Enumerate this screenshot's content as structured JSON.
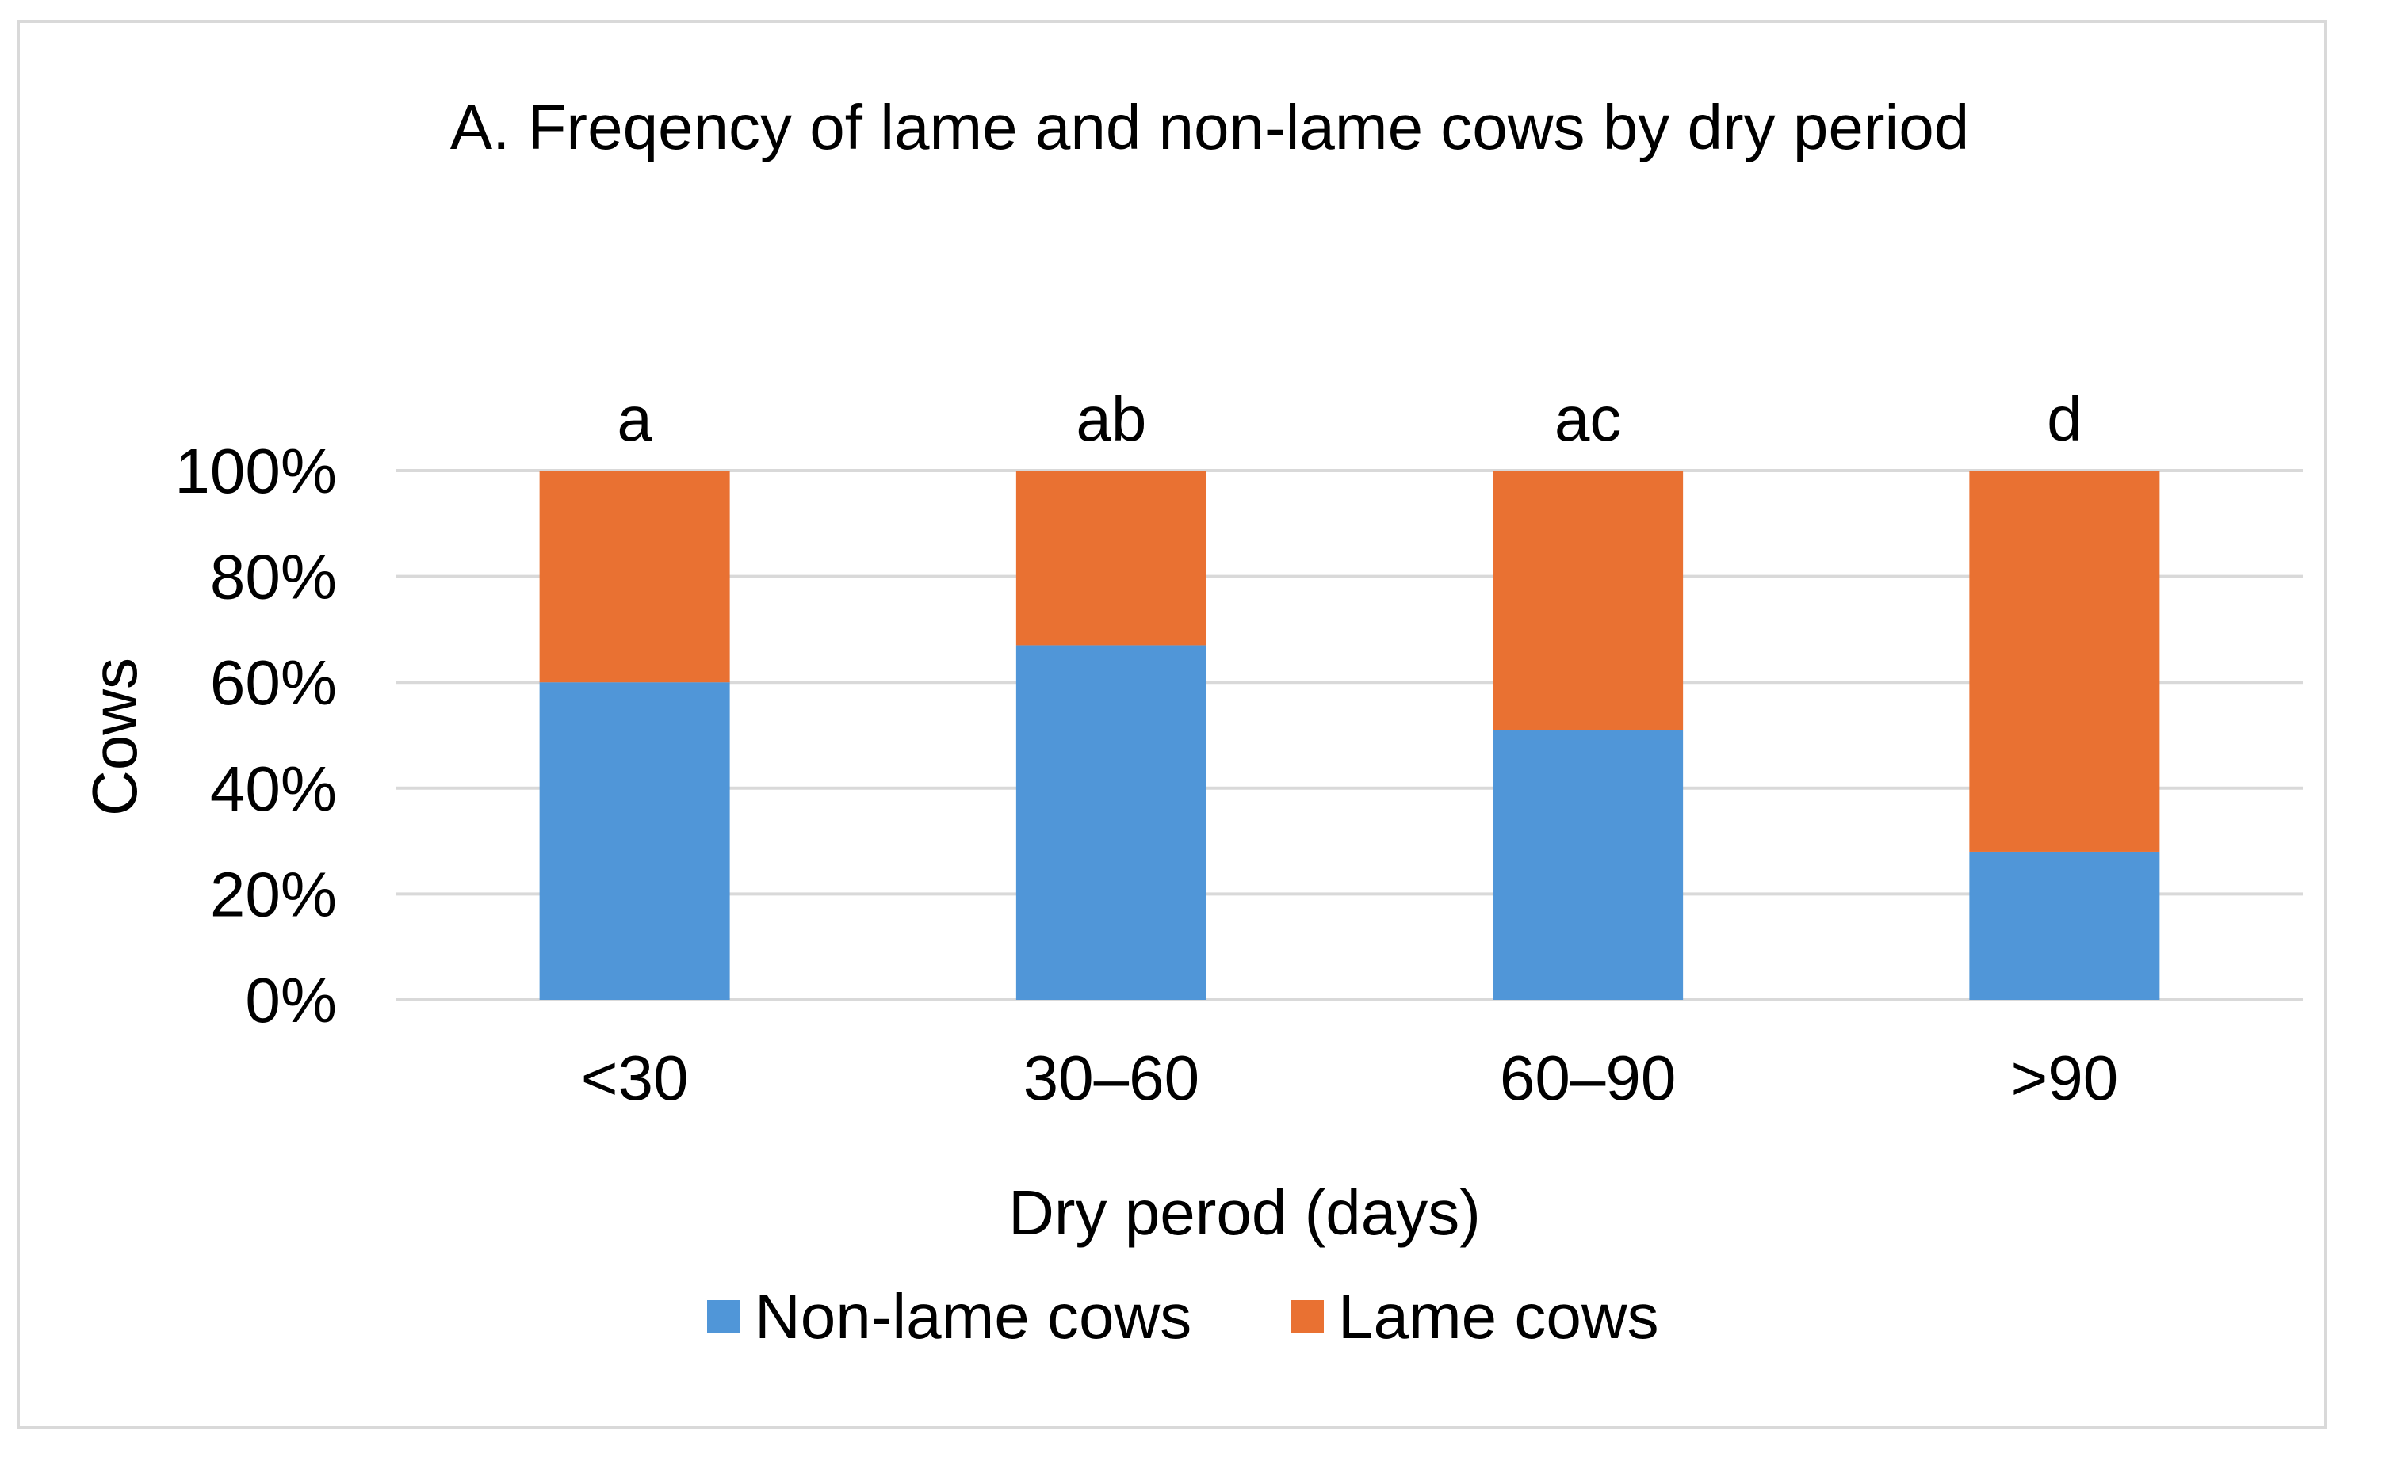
{
  "chart_data": {
    "type": "bar",
    "stacking": "percent",
    "title": "A. Freqency of lame and non-lame cows by dry period",
    "xlabel": "Dry perod (days)",
    "ylabel": "Cows",
    "categories": [
      "<30",
      "30–60",
      "60–90",
      ">90"
    ],
    "significance_letters": [
      "a",
      "ab",
      "ac",
      "d"
    ],
    "series": [
      {
        "name": "Non-lame cows",
        "color": "#5096d8",
        "values": [
          60,
          67,
          51,
          28
        ]
      },
      {
        "name": "Lame cows",
        "color": "#e97132",
        "values": [
          40,
          33,
          49,
          72
        ]
      }
    ],
    "ylim": [
      0,
      100
    ],
    "yticks": [
      0,
      20,
      40,
      60,
      80,
      100
    ],
    "ytick_labels": [
      "0%",
      "20%",
      "40%",
      "60%",
      "80%",
      "100%"
    ],
    "grid": true,
    "legend_position": "bottom"
  }
}
